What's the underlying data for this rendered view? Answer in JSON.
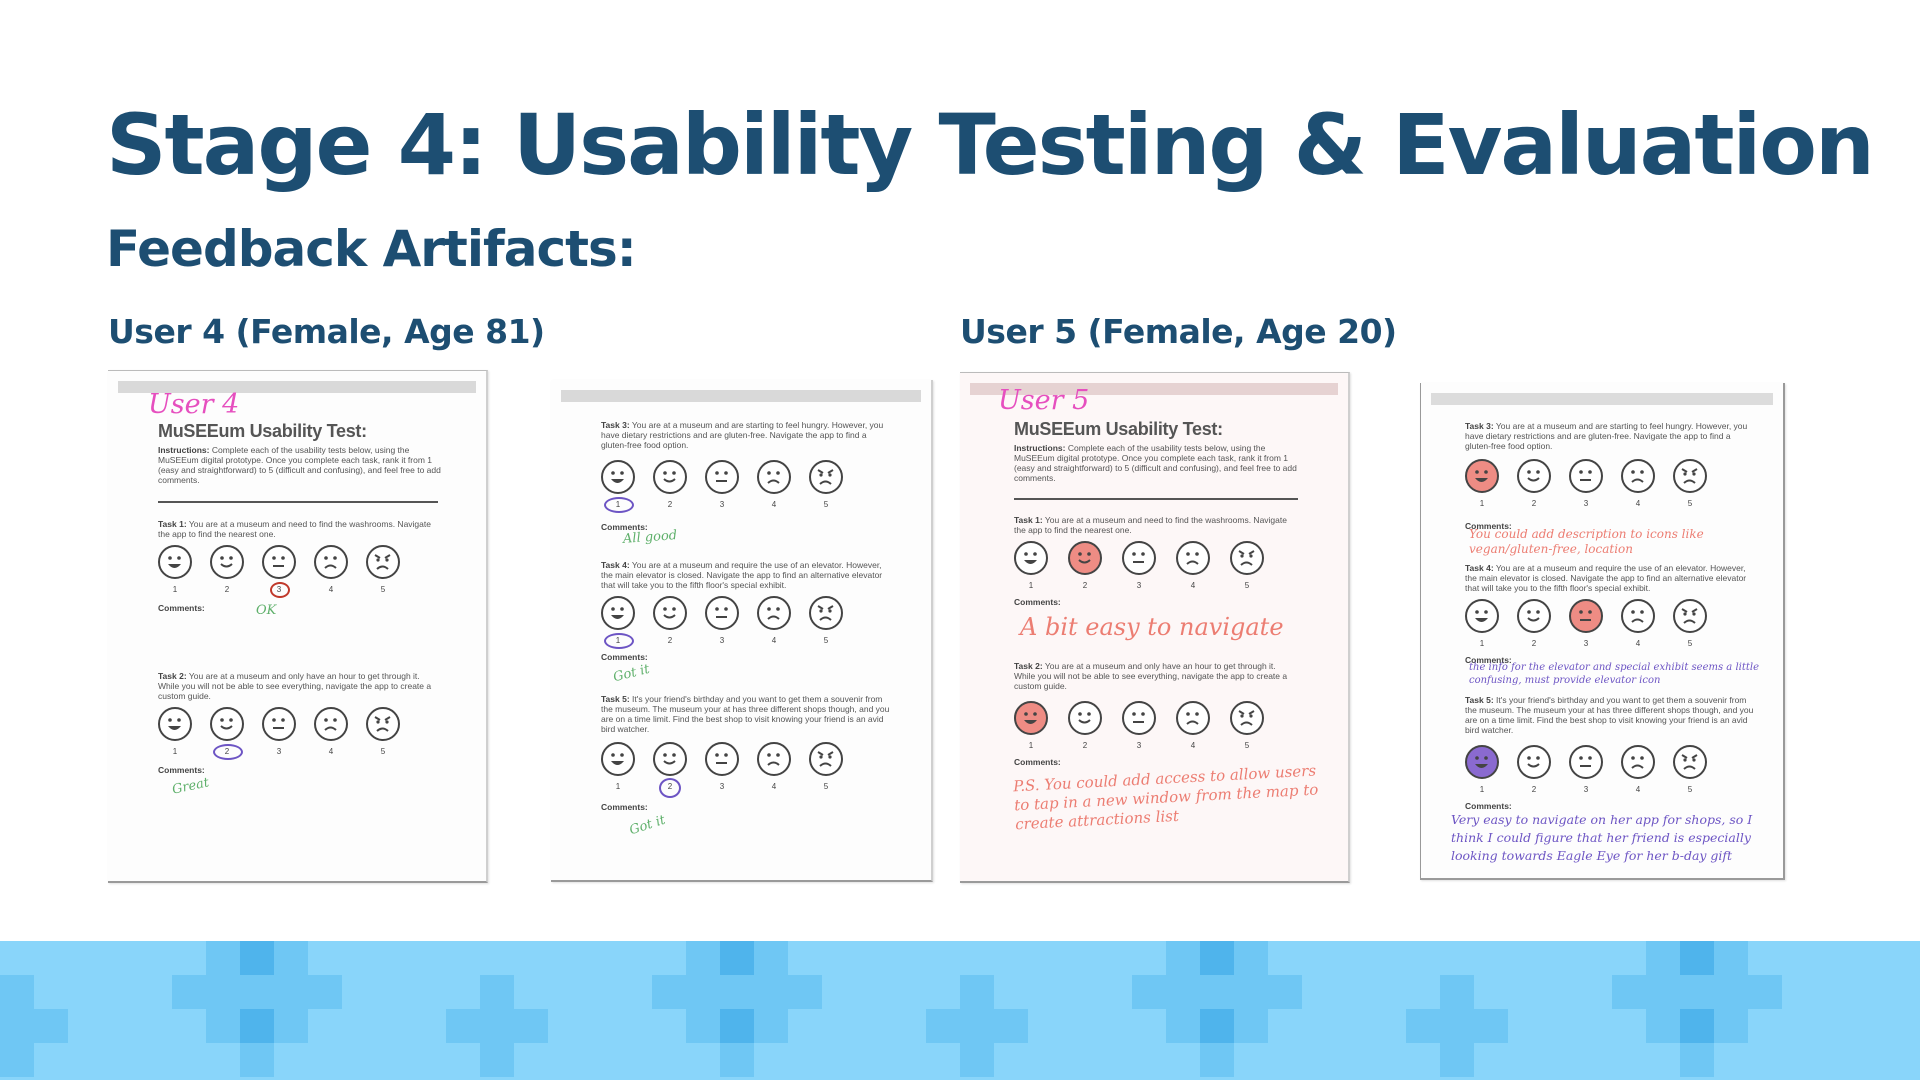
{
  "slide": {
    "title": "Stage 4: Usability Testing & Evaluation",
    "subtitle": "Feedback Artifacts:"
  },
  "colors": {
    "heading": "#1d4e72",
    "band_light": "#89d5fa",
    "band_mid": "#6fc7f4",
    "band_dark": "#4fb4ec",
    "handwriting_pink": "#e64fbf",
    "handwriting_green": "#5fb06b",
    "handwriting_red": "#ec7d72",
    "handwriting_purple": "#6d55c4"
  },
  "users": [
    {
      "heading": "User 4 (Female, Age 81)"
    },
    {
      "heading": "User 5 (Female, Age 20)"
    }
  ],
  "form": {
    "title": "MuSEEum Usability Test:",
    "instructions_label": "Instructions:",
    "instructions_text": "Complete each of the usability tests below, using the MuSEEum digital prototype. Once you complete each task, rank it from 1 (easy and straightforward) to 5 (difficult and confusing), and feel free to add comments.",
    "comments_label": "Comments:",
    "scale": [
      "1",
      "2",
      "3",
      "4",
      "5"
    ],
    "tasks": [
      {
        "label": "Task 1:",
        "text": "You are at a museum and need to find the washrooms. Navigate the app to find the nearest one."
      },
      {
        "label": "Task 2:",
        "text": "You are at a museum and only have an hour to get through it. While you will not be able to see everything, navigate the app to create a custom guide."
      },
      {
        "label": "Task 3:",
        "text": "You are at a museum and are starting to feel hungry. However, you have dietary restrictions and are gluten-free. Navigate the app to find a gluten-free food option."
      },
      {
        "label": "Task 4:",
        "text": "You are at a museum and require the use of an elevator. However, the main elevator is closed. Navigate the app to find an alternative elevator that will take you to the fifth floor's special exhibit."
      },
      {
        "label": "Task 5:",
        "text": "It's your friend's birthday and you want to get them a souvenir from the museum. The museum your at has three different shops though, and you are on a time limit. Find the best shop to visit knowing your friend is an avid bird watcher."
      }
    ]
  },
  "handwriting": {
    "user4_name": "User 4",
    "user5_name": "User 5",
    "u4_task1": "OK",
    "u4_task2": "Great",
    "u4_task3": "All good",
    "u4_task4": "Got it",
    "u4_task5": "Got it",
    "u5_task1": "A bit easy to navigate",
    "u5_task2": "P.S. You could add access to allow users to tap in a new window from the map to create attractions list",
    "u5_task3": "You could add description to icons like vegan/gluten-free, location",
    "u5_task4": "the info for the elevator and special exhibit seems a little confusing, must provide elevator icon",
    "u5_task5": "Very easy to navigate on her app for shops, so I think I could figure that her friend is especially looking towards Eagle Eye for her b-day gift"
  },
  "ratings": {
    "u4": {
      "task1": 3,
      "task2": 2,
      "task3": 1,
      "task4": 1,
      "task5": 2
    },
    "u5": {
      "task1": 2,
      "task2": 1,
      "task3": 1,
      "task4": 3,
      "task5": 1
    }
  }
}
